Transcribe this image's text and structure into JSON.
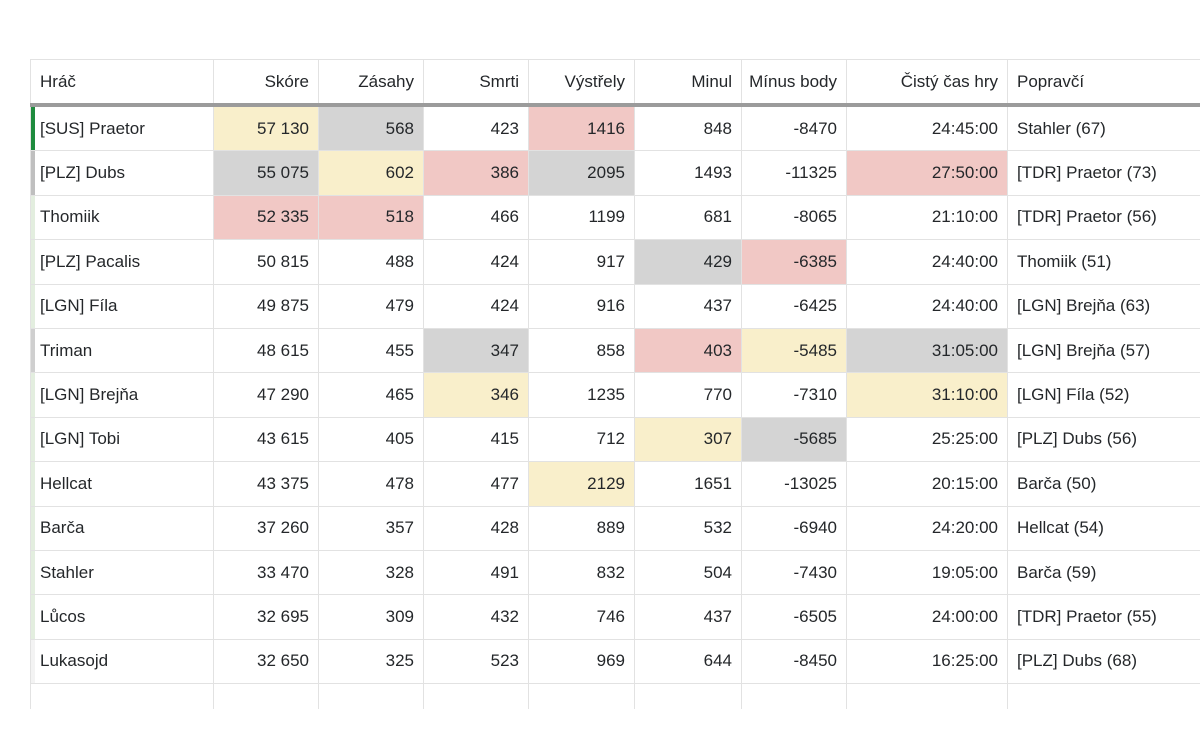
{
  "colors": {
    "highlights": {
      "yellow": "#f9efcb",
      "gray": "#d4d4d4",
      "red": "#f1c8c5"
    }
  },
  "table": {
    "columns": [
      {
        "key": "hrac",
        "label": "Hráč",
        "align": "left"
      },
      {
        "key": "skore",
        "label": "Skóre",
        "align": "right"
      },
      {
        "key": "zasahy",
        "label": "Zásahy",
        "align": "right"
      },
      {
        "key": "smrti",
        "label": "Smrti",
        "align": "right"
      },
      {
        "key": "vystrely",
        "label": "Výstřely",
        "align": "right"
      },
      {
        "key": "minul",
        "label": "Minul",
        "align": "right"
      },
      {
        "key": "minus_body",
        "label": "Mínus body",
        "align": "right"
      },
      {
        "key": "cisty_cas",
        "label": "Čistý čas hry",
        "align": "right"
      },
      {
        "key": "popravci",
        "label": "Popravčí",
        "align": "left"
      }
    ],
    "rows": [
      {
        "hrac": "[SUS] Praetor",
        "skore": "57 130",
        "zasahy": "568",
        "smrti": "423",
        "vystrely": "1416",
        "minul": "848",
        "minus_body": "-8470",
        "cisty_cas": "24:45:00",
        "popravci": "Stahler (67)",
        "edge": "#1f8b3e",
        "highlights": {
          "skore": "yellow",
          "zasahy": "gray",
          "vystrely": "red"
        }
      },
      {
        "hrac": "[PLZ] Dubs",
        "skore": "55 075",
        "zasahy": "602",
        "smrti": "386",
        "vystrely": "2095",
        "minul": "1493",
        "minus_body": "-11325",
        "cisty_cas": "27:50:00",
        "popravci": "[TDR] Praetor (73)",
        "edge": "#bfbfbf",
        "highlights": {
          "skore": "gray",
          "zasahy": "yellow",
          "smrti": "red",
          "vystrely": "gray",
          "cisty_cas": "red"
        }
      },
      {
        "hrac": "Thomiik",
        "skore": "52 335",
        "zasahy": "518",
        "smrti": "466",
        "vystrely": "1199",
        "minul": "681",
        "minus_body": "-8065",
        "cisty_cas": "21:10:00",
        "popravci": "[TDR] Praetor (56)",
        "edge": "#e3eedf",
        "highlights": {
          "skore": "red",
          "zasahy": "red"
        }
      },
      {
        "hrac": "[PLZ] Pacalis",
        "skore": "50 815",
        "zasahy": "488",
        "smrti": "424",
        "vystrely": "917",
        "minul": "429",
        "minus_body": "-6385",
        "cisty_cas": "24:40:00",
        "popravci": "Thomiik (51)",
        "edge": "#e3eedf",
        "highlights": {
          "minul": "gray",
          "minus_body": "red"
        }
      },
      {
        "hrac": "[LGN] Fíla",
        "skore": "49 875",
        "zasahy": "479",
        "smrti": "424",
        "vystrely": "916",
        "minul": "437",
        "minus_body": "-6425",
        "cisty_cas": "24:40:00",
        "popravci": "[LGN] Brejňa (63)",
        "edge": "#e3eedf",
        "highlights": {}
      },
      {
        "hrac": "Triman",
        "skore": "48 615",
        "zasahy": "455",
        "smrti": "347",
        "vystrely": "858",
        "minul": "403",
        "minus_body": "-5485",
        "cisty_cas": "31:05:00",
        "popravci": "[LGN] Brejňa (57)",
        "edge": "#cfcfcf",
        "highlights": {
          "smrti": "gray",
          "minul": "red",
          "minus_body": "yellow",
          "cisty_cas": "gray"
        }
      },
      {
        "hrac": "[LGN] Brejňa",
        "skore": "47 290",
        "zasahy": "465",
        "smrti": "346",
        "vystrely": "1235",
        "minul": "770",
        "minus_body": "-7310",
        "cisty_cas": "31:10:00",
        "popravci": "[LGN] Fíla (52)",
        "edge": "#e3eedf",
        "highlights": {
          "smrti": "yellow",
          "cisty_cas": "yellow"
        }
      },
      {
        "hrac": "[LGN] Tobi",
        "skore": "43 615",
        "zasahy": "405",
        "smrti": "415",
        "vystrely": "712",
        "minul": "307",
        "minus_body": "-5685",
        "cisty_cas": "25:25:00",
        "popravci": "[PLZ] Dubs (56)",
        "edge": "#e3eedf",
        "highlights": {
          "minul": "yellow",
          "minus_body": "gray"
        }
      },
      {
        "hrac": "Hellcat",
        "skore": "43 375",
        "zasahy": "478",
        "smrti": "477",
        "vystrely": "2129",
        "minul": "1651",
        "minus_body": "-13025",
        "cisty_cas": "20:15:00",
        "popravci": "Barča (50)",
        "edge": "#e3eedf",
        "highlights": {
          "vystrely": "yellow"
        }
      },
      {
        "hrac": "Barča",
        "skore": "37 260",
        "zasahy": "357",
        "smrti": "428",
        "vystrely": "889",
        "minul": "532",
        "minus_body": "-6940",
        "cisty_cas": "24:20:00",
        "popravci": "Hellcat (54)",
        "edge": "#e3eedf",
        "highlights": {}
      },
      {
        "hrac": "Stahler",
        "skore": "33 470",
        "zasahy": "328",
        "smrti": "491",
        "vystrely": "832",
        "minul": "504",
        "minus_body": "-7430",
        "cisty_cas": "19:05:00",
        "popravci": "Barča (59)",
        "edge": "#e3eedf",
        "highlights": {}
      },
      {
        "hrac": "Lůcos",
        "skore": "32 695",
        "zasahy": "309",
        "smrti": "432",
        "vystrely": "746",
        "minul": "437",
        "minus_body": "-6505",
        "cisty_cas": "24:00:00",
        "popravci": "[TDR] Praetor (55)",
        "edge": "#e3eedf",
        "highlights": {}
      },
      {
        "hrac": "Lukasojd",
        "skore": "32 650",
        "zasahy": "325",
        "smrti": "523",
        "vystrely": "969",
        "minul": "644",
        "minus_body": "-8450",
        "cisty_cas": "16:25:00",
        "popravci": "[PLZ] Dubs (68)",
        "edge": "#f3f3f3",
        "highlights": {}
      }
    ]
  }
}
